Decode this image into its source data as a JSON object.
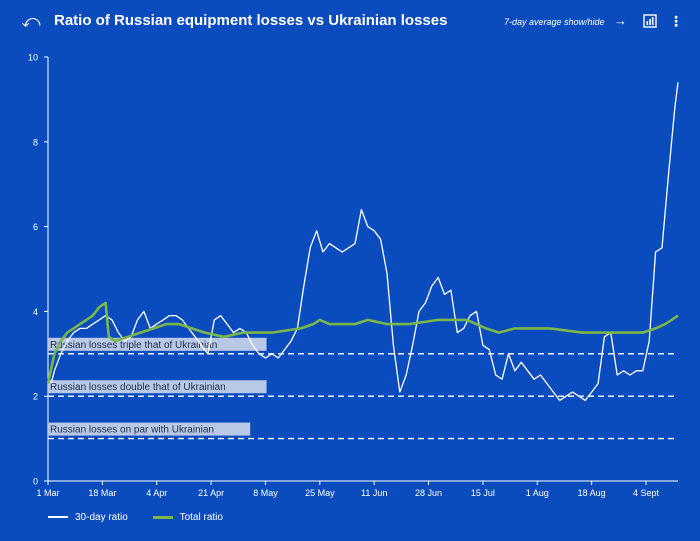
{
  "header": {
    "title": "Ratio of Russian equipment losses vs Ukrainian losses",
    "toggle_label": "7-day average show/hide",
    "back_glyph": "⤺",
    "arrow_glyph": "→",
    "menu_glyph": "⋮"
  },
  "icons": {
    "back": "back-icon",
    "arrow": "arrow-right-icon",
    "chart_toggle": "chart-toggle-icon",
    "menu": "more-vertical-icon"
  },
  "colors": {
    "background": "#0a4cbe",
    "line_30day": "#ffffff",
    "line_total": "#7ab648",
    "reference": "#ffffff",
    "label_bg": "#b8c8e6",
    "label_text": "#1e2d4a"
  },
  "chart_data": {
    "type": "line",
    "xlabel": "",
    "ylabel": "",
    "x_ticks": [
      "1 Mar",
      "18 Mar",
      "4 Apr",
      "21 Apr",
      "8 May",
      "25 May",
      "11 Jun",
      "28 Jun",
      "15 Jul",
      "1 Aug",
      "18 Aug",
      "4 Sept"
    ],
    "x_range": [
      "1 Mar",
      "14 Sept"
    ],
    "y_ticks": [
      "0",
      "2",
      "4",
      "6",
      "8",
      "10"
    ],
    "ylim": [
      0,
      10
    ],
    "grid": false,
    "legend_position": "bottom-left",
    "reference_lines": [
      {
        "y": 3,
        "label": "Russian losses triple that of Ukrainian"
      },
      {
        "y": 2,
        "label": "Russian losses double that of Ukrainian"
      },
      {
        "y": 1,
        "label": "Russian losses on par with Ukrainian"
      }
    ],
    "series": [
      {
        "name": "30-day ratio",
        "x": [
          "2022-03-02",
          "2022-03-03",
          "2022-03-05",
          "2022-03-07",
          "2022-03-09",
          "2022-03-11",
          "2022-03-13",
          "2022-03-15",
          "2022-03-17",
          "2022-03-19",
          "2022-03-21",
          "2022-03-23",
          "2022-03-25",
          "2022-03-27",
          "2022-03-29",
          "2022-03-31",
          "2022-04-02",
          "2022-04-04",
          "2022-04-06",
          "2022-04-08",
          "2022-04-10",
          "2022-04-12",
          "2022-04-14",
          "2022-04-16",
          "2022-04-18",
          "2022-04-20",
          "2022-04-22",
          "2022-04-24",
          "2022-04-26",
          "2022-04-28",
          "2022-04-30",
          "2022-05-02",
          "2022-05-04",
          "2022-05-06",
          "2022-05-08",
          "2022-05-10",
          "2022-05-12",
          "2022-05-14",
          "2022-05-16",
          "2022-05-18",
          "2022-05-20",
          "2022-05-22",
          "2022-05-24",
          "2022-05-26",
          "2022-05-28",
          "2022-05-30",
          "2022-06-01",
          "2022-06-03",
          "2022-06-05",
          "2022-06-07",
          "2022-06-09",
          "2022-06-11",
          "2022-06-13",
          "2022-06-15",
          "2022-06-17",
          "2022-06-19",
          "2022-06-21",
          "2022-06-23",
          "2022-06-25",
          "2022-06-27",
          "2022-06-29",
          "2022-07-01",
          "2022-07-03",
          "2022-07-05",
          "2022-07-07",
          "2022-07-09",
          "2022-07-11",
          "2022-07-13",
          "2022-07-15",
          "2022-07-17",
          "2022-07-19",
          "2022-07-21",
          "2022-07-23",
          "2022-07-25",
          "2022-07-27",
          "2022-07-29",
          "2022-07-31",
          "2022-08-02",
          "2022-08-04",
          "2022-08-06",
          "2022-08-08",
          "2022-08-10",
          "2022-08-12",
          "2022-08-14",
          "2022-08-16",
          "2022-08-18",
          "2022-08-20",
          "2022-08-22",
          "2022-08-24",
          "2022-08-26",
          "2022-08-28",
          "2022-08-30",
          "2022-09-01",
          "2022-09-03",
          "2022-09-05",
          "2022-09-07",
          "2022-09-09",
          "2022-09-11",
          "2022-09-13",
          "2022-09-14"
        ],
        "y": [
          2.3,
          2.6,
          3.0,
          3.3,
          3.5,
          3.6,
          3.6,
          3.7,
          3.8,
          3.9,
          3.8,
          3.5,
          3.3,
          3.4,
          3.8,
          4.0,
          3.6,
          3.7,
          3.8,
          3.9,
          3.9,
          3.8,
          3.6,
          3.4,
          3.2,
          3.0,
          3.8,
          3.9,
          3.7,
          3.5,
          3.6,
          3.5,
          3.2,
          3.0,
          2.9,
          3.0,
          2.9,
          3.1,
          3.3,
          3.6,
          4.6,
          5.5,
          5.9,
          5.4,
          5.6,
          5.5,
          5.4,
          5.5,
          5.6,
          6.4,
          6.0,
          5.9,
          5.7,
          4.9,
          3.2,
          2.1,
          2.5,
          3.2,
          4.0,
          4.2,
          4.6,
          4.8,
          4.4,
          4.5,
          3.5,
          3.6,
          3.9,
          4.0,
          3.2,
          3.1,
          2.5,
          2.4,
          3.0,
          2.6,
          2.8,
          2.6,
          2.4,
          2.5,
          2.3,
          2.1,
          1.9,
          2.0,
          2.1,
          2.0,
          1.9,
          2.1,
          2.3,
          3.4,
          3.5,
          2.5,
          2.6,
          2.5,
          2.6,
          2.6,
          3.3,
          5.4,
          5.5,
          7.2,
          8.8,
          9.4
        ]
      },
      {
        "name": "Total ratio",
        "x": [
          "2022-03-01",
          "2022-03-03",
          "2022-03-05",
          "2022-03-07",
          "2022-03-09",
          "2022-03-11",
          "2022-03-13",
          "2022-03-15",
          "2022-03-17",
          "2022-03-19",
          "2022-03-20",
          "2022-03-22",
          "2022-03-26",
          "2022-03-30",
          "2022-04-03",
          "2022-04-07",
          "2022-04-11",
          "2022-04-15",
          "2022-04-19",
          "2022-04-25",
          "2022-05-01",
          "2022-05-10",
          "2022-05-19",
          "2022-05-23",
          "2022-05-25",
          "2022-05-28",
          "2022-06-01",
          "2022-06-05",
          "2022-06-09",
          "2022-06-15",
          "2022-06-22",
          "2022-07-01",
          "2022-07-10",
          "2022-07-16",
          "2022-07-20",
          "2022-07-25",
          "2022-08-05",
          "2022-08-15",
          "2022-08-26",
          "2022-09-03",
          "2022-09-07",
          "2022-09-10",
          "2022-09-12",
          "2022-09-14"
        ],
        "y": [
          2.3,
          3.0,
          3.3,
          3.5,
          3.6,
          3.7,
          3.8,
          3.9,
          4.1,
          4.2,
          3.4,
          3.3,
          3.4,
          3.5,
          3.6,
          3.7,
          3.7,
          3.6,
          3.5,
          3.4,
          3.5,
          3.5,
          3.6,
          3.7,
          3.8,
          3.7,
          3.7,
          3.7,
          3.8,
          3.7,
          3.7,
          3.8,
          3.8,
          3.6,
          3.5,
          3.6,
          3.6,
          3.5,
          3.5,
          3.5,
          3.6,
          3.7,
          3.8,
          3.9
        ]
      }
    ]
  }
}
